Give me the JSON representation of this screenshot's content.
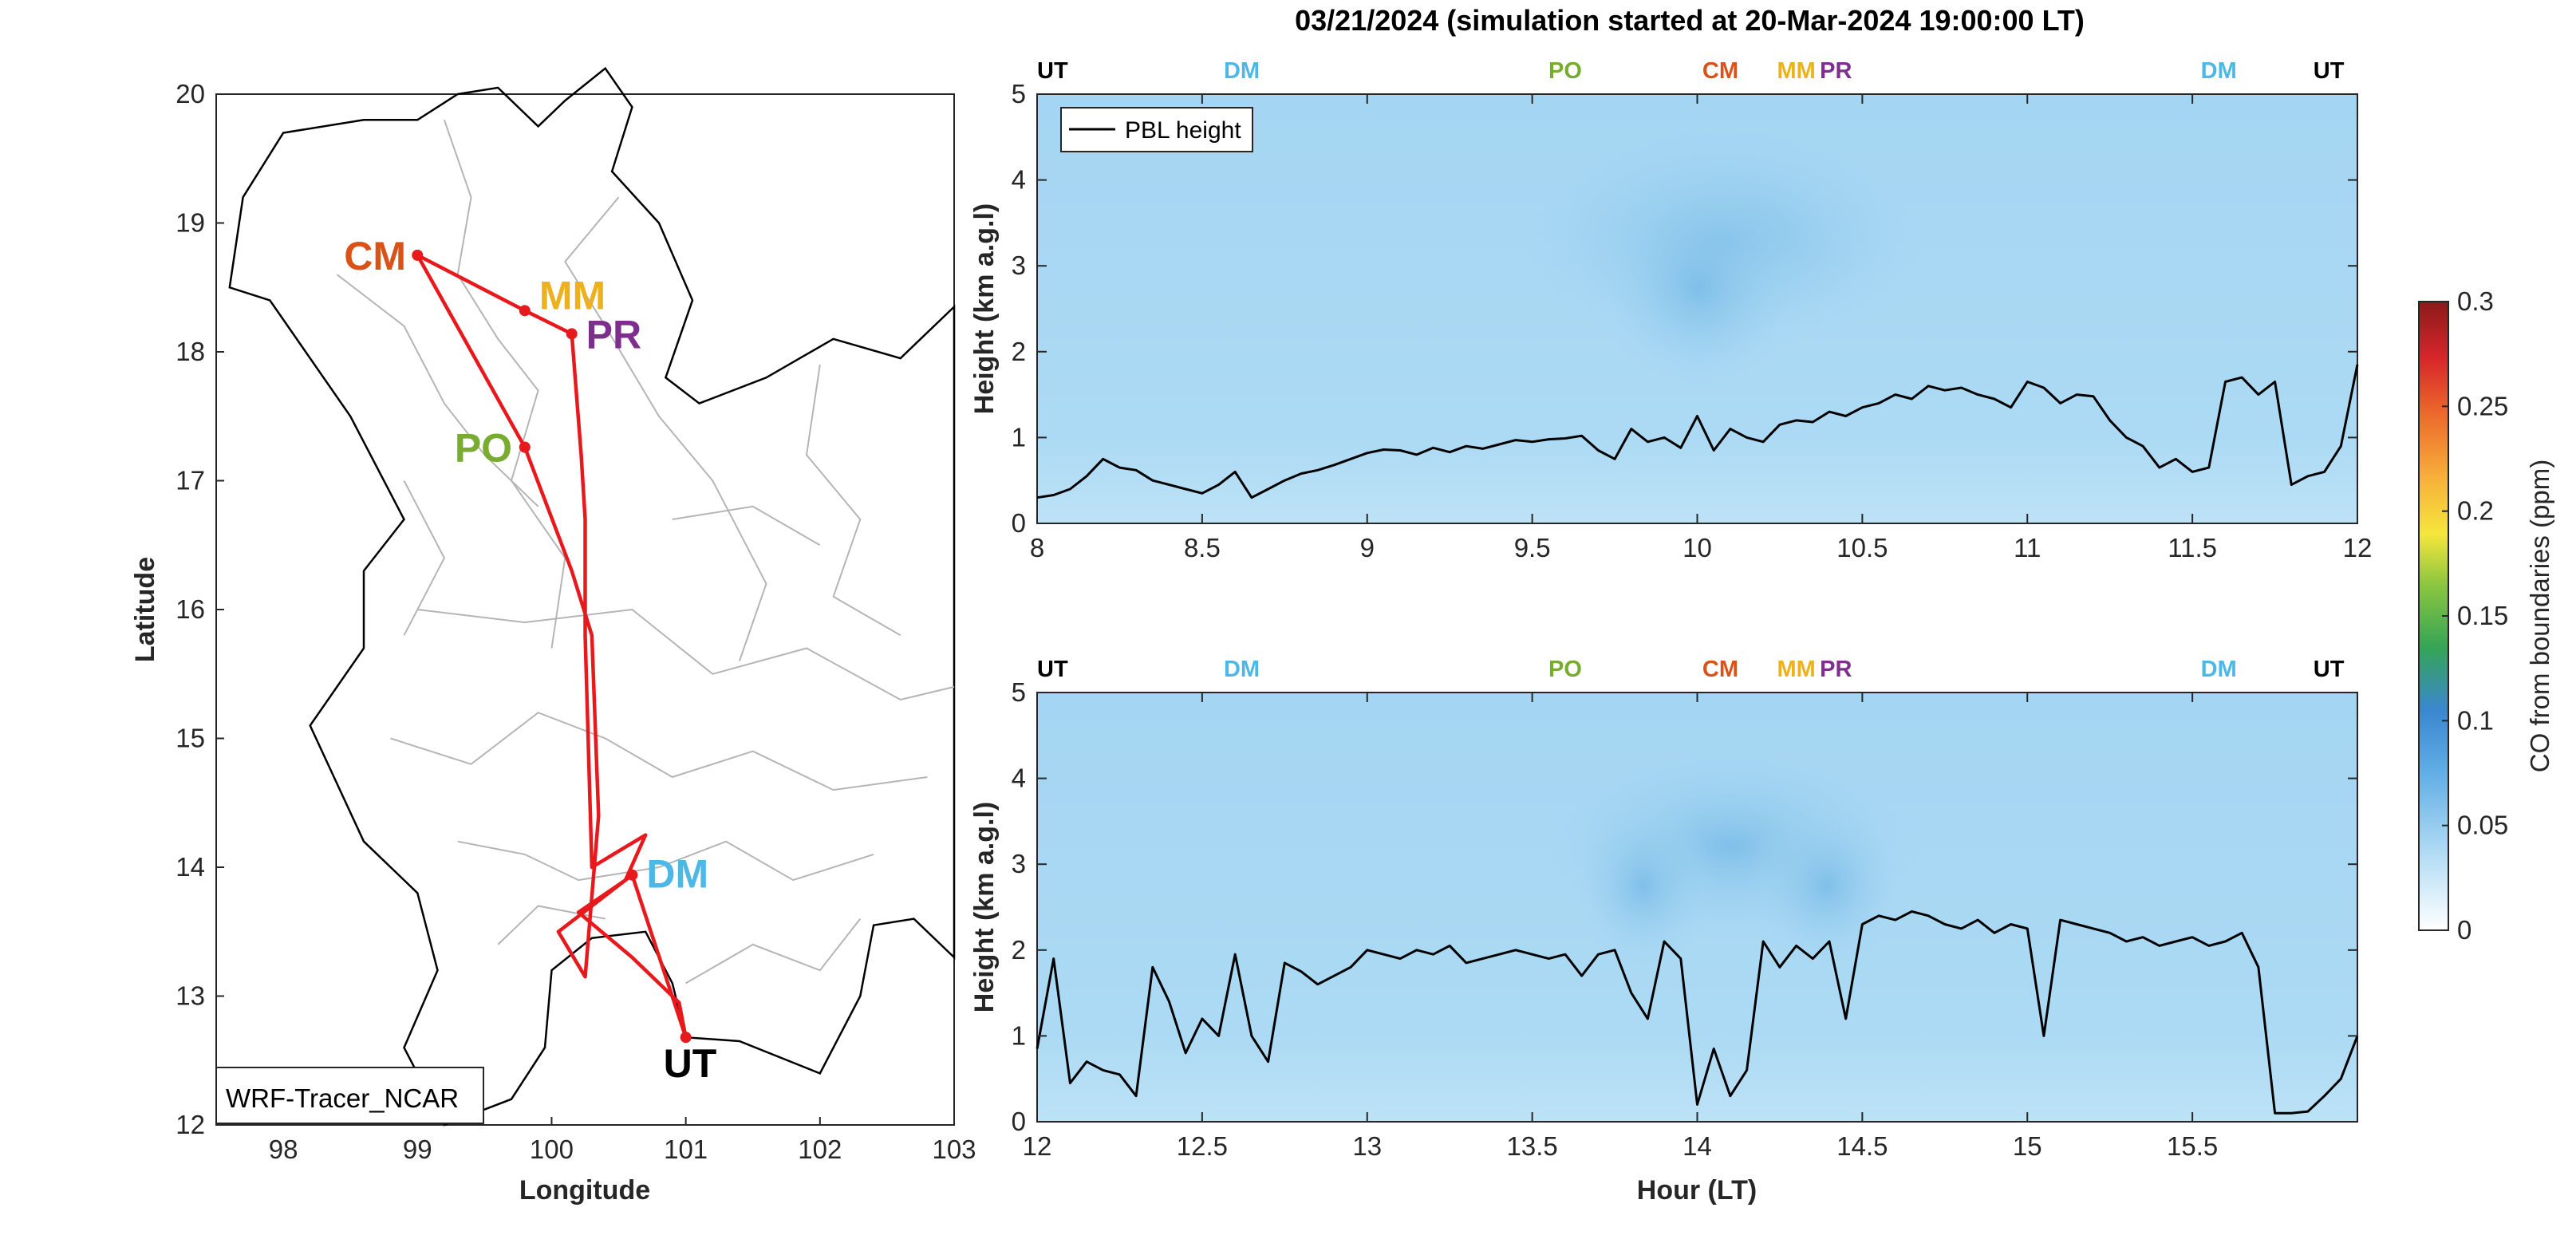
{
  "figure_title": "03/21/2024 (simulation started at 20-Mar-2024 19:00:00 LT)",
  "colors": {
    "route": "#e8191c",
    "ut": "#000000",
    "dm": "#4db8e8",
    "po": "#77ac30",
    "cm": "#d95319",
    "mm": "#edb120",
    "pr": "#7e2f8e",
    "pbl_line": "#000000",
    "field_bg": "#a8d8f3",
    "field_dark": "#86c3ea",
    "field_light": "#cdeaf9"
  },
  "map": {
    "xlabel": "Longitude",
    "ylabel": "Latitude",
    "xlim": [
      97.5,
      103
    ],
    "ylim": [
      12,
      20
    ],
    "xticks": [
      "98",
      "99",
      "100",
      "101",
      "102",
      "103"
    ],
    "yticks": [
      "12",
      "13",
      "14",
      "15",
      "16",
      "17",
      "18",
      "19",
      "20"
    ],
    "model_label": "WRF-Tracer_NCAR",
    "sites": [
      {
        "name": "CM",
        "lon": 99.0,
        "lat": 18.75,
        "color_key": "cm"
      },
      {
        "name": "MM",
        "lon": 99.8,
        "lat": 18.32,
        "color_key": "mm"
      },
      {
        "name": "PR",
        "lon": 100.15,
        "lat": 18.14,
        "color_key": "pr"
      },
      {
        "name": "PO",
        "lon": 99.8,
        "lat": 17.26,
        "color_key": "po"
      },
      {
        "name": "DM",
        "lon": 100.6,
        "lat": 13.94,
        "color_key": "dm"
      },
      {
        "name": "UT",
        "lon": 101.0,
        "lat": 12.68,
        "color_key": "ut"
      }
    ],
    "route": [
      [
        101.0,
        12.68
      ],
      [
        100.6,
        13.94
      ],
      [
        100.05,
        13.5
      ],
      [
        100.25,
        13.15
      ],
      [
        100.35,
        14.4
      ],
      [
        100.3,
        15.8
      ],
      [
        100.15,
        16.3
      ],
      [
        99.8,
        17.26
      ],
      [
        99.0,
        18.75
      ],
      [
        99.8,
        18.32
      ],
      [
        100.15,
        18.14
      ],
      [
        100.22,
        17.2
      ],
      [
        100.25,
        16.7
      ],
      [
        100.25,
        15.8
      ],
      [
        100.3,
        14.0
      ],
      [
        100.7,
        14.25
      ],
      [
        100.55,
        13.9
      ],
      [
        100.2,
        13.65
      ],
      [
        100.6,
        13.3
      ],
      [
        100.95,
        12.95
      ],
      [
        101.0,
        12.68
      ]
    ]
  },
  "panels": [
    {
      "ylabel": "Height (km a.g.l)",
      "xlabel": "",
      "xlim": [
        8,
        12
      ],
      "ylim": [
        0,
        5
      ],
      "xticks": [
        "8",
        "8.5",
        "9",
        "9.5",
        "10",
        "10.5",
        "11",
        "11.5",
        "12"
      ],
      "yticks": [
        "0",
        "1",
        "2",
        "3",
        "4",
        "5"
      ],
      "legend": "PBL height",
      "top_labels": [
        {
          "text": "UT",
          "x": 8.0,
          "color_key": "ut"
        },
        {
          "text": "DM",
          "x": 8.62,
          "color_key": "dm"
        },
        {
          "text": "PO",
          "x": 9.6,
          "color_key": "po"
        },
        {
          "text": "CM",
          "x": 10.07,
          "color_key": "cm"
        },
        {
          "text": "MM",
          "x": 10.3,
          "color_key": "mm"
        },
        {
          "text": "PR",
          "x": 10.42,
          "color_key": "pr"
        },
        {
          "text": "DM",
          "x": 11.58,
          "color_key": "dm"
        },
        {
          "text": "UT",
          "x": 11.96,
          "color_key": "ut"
        }
      ]
    },
    {
      "ylabel": "Height (km a.g.l)",
      "xlabel": "Hour (LT)",
      "xlim": [
        12,
        16
      ],
      "ylim": [
        0,
        5
      ],
      "xticks": [
        "12",
        "12.5",
        "13",
        "13.5",
        "14",
        "14.5",
        "15",
        "15.5"
      ],
      "yticks": [
        "0",
        "1",
        "2",
        "3",
        "4",
        "5"
      ],
      "legend": "",
      "top_labels": [
        {
          "text": "UT",
          "x": 12.0,
          "color_key": "ut"
        },
        {
          "text": "DM",
          "x": 12.62,
          "color_key": "dm"
        },
        {
          "text": "PO",
          "x": 13.6,
          "color_key": "po"
        },
        {
          "text": "CM",
          "x": 14.07,
          "color_key": "cm"
        },
        {
          "text": "MM",
          "x": 14.3,
          "color_key": "mm"
        },
        {
          "text": "PR",
          "x": 14.42,
          "color_key": "pr"
        },
        {
          "text": "DM",
          "x": 15.58,
          "color_key": "dm"
        },
        {
          "text": "UT",
          "x": 15.96,
          "color_key": "ut"
        }
      ]
    }
  ],
  "colorbar": {
    "label": "CO from boundaries (ppm)",
    "range": [
      0,
      0.3
    ],
    "ticks": [
      "0",
      "0.05",
      "0.1",
      "0.15",
      "0.2",
      "0.25",
      "0.3"
    ]
  },
  "chart_data": [
    {
      "type": "line",
      "title": "03/21/2024 (simulation started at 20-Mar-2024 19:00:00 LT)",
      "xlabel": "",
      "ylabel": "Height (km a.g.l)",
      "xlim": [
        8,
        12
      ],
      "ylim": [
        0,
        5
      ],
      "series": [
        {
          "name": "PBL height",
          "x": [
            8.0,
            8.05,
            8.1,
            8.15,
            8.2,
            8.25,
            8.3,
            8.35,
            8.4,
            8.45,
            8.5,
            8.55,
            8.6,
            8.65,
            8.7,
            8.75,
            8.8,
            8.85,
            8.9,
            8.95,
            9.0,
            9.05,
            9.1,
            9.15,
            9.2,
            9.25,
            9.3,
            9.35,
            9.4,
            9.45,
            9.5,
            9.55,
            9.6,
            9.65,
            9.7,
            9.75,
            9.8,
            9.85,
            9.9,
            9.95,
            10.0,
            10.05,
            10.1,
            10.15,
            10.2,
            10.25,
            10.3,
            10.35,
            10.4,
            10.45,
            10.5,
            10.55,
            10.6,
            10.65,
            10.7,
            10.75,
            10.8,
            10.85,
            10.9,
            10.95,
            11.0,
            11.05,
            11.1,
            11.15,
            11.2,
            11.25,
            11.3,
            11.35,
            11.4,
            11.45,
            11.5,
            11.55,
            11.6,
            11.65,
            11.7,
            11.75,
            11.8,
            11.85,
            11.9,
            11.95,
            12.0
          ],
          "y": [
            0.3,
            0.33,
            0.4,
            0.55,
            0.75,
            0.65,
            0.62,
            0.5,
            0.45,
            0.4,
            0.35,
            0.45,
            0.6,
            0.3,
            0.4,
            0.5,
            0.58,
            0.62,
            0.68,
            0.75,
            0.82,
            0.86,
            0.85,
            0.8,
            0.88,
            0.83,
            0.9,
            0.87,
            0.92,
            0.97,
            0.95,
            0.98,
            0.99,
            1.02,
            0.85,
            0.75,
            1.1,
            0.95,
            1.0,
            0.88,
            1.25,
            0.85,
            1.1,
            1.0,
            0.95,
            1.15,
            1.2,
            1.18,
            1.3,
            1.25,
            1.35,
            1.4,
            1.5,
            1.45,
            1.6,
            1.55,
            1.58,
            1.5,
            1.45,
            1.35,
            1.65,
            1.58,
            1.4,
            1.5,
            1.48,
            1.2,
            1.0,
            0.9,
            0.65,
            0.75,
            0.6,
            0.65,
            1.65,
            1.7,
            1.5,
            1.65,
            0.45,
            0.55,
            0.6,
            0.9,
            1.85
          ]
        }
      ]
    },
    {
      "type": "line",
      "title": "",
      "xlabel": "Hour (LT)",
      "ylabel": "Height (km a.g.l)",
      "xlim": [
        12,
        16
      ],
      "ylim": [
        0,
        5
      ],
      "series": [
        {
          "name": "PBL height",
          "x": [
            12.0,
            12.05,
            12.1,
            12.15,
            12.2,
            12.25,
            12.3,
            12.35,
            12.4,
            12.45,
            12.5,
            12.55,
            12.6,
            12.65,
            12.7,
            12.75,
            12.8,
            12.85,
            12.9,
            12.95,
            13.0,
            13.05,
            13.1,
            13.15,
            13.2,
            13.25,
            13.3,
            13.35,
            13.4,
            13.45,
            13.5,
            13.55,
            13.6,
            13.65,
            13.7,
            13.75,
            13.8,
            13.85,
            13.9,
            13.95,
            14.0,
            14.05,
            14.1,
            14.15,
            14.2,
            14.25,
            14.3,
            14.35,
            14.4,
            14.45,
            14.5,
            14.55,
            14.6,
            14.65,
            14.7,
            14.75,
            14.8,
            14.85,
            14.9,
            14.95,
            15.0,
            15.05,
            15.1,
            15.15,
            15.2,
            15.25,
            15.3,
            15.35,
            15.4,
            15.45,
            15.5,
            15.55,
            15.6,
            15.65,
            15.7,
            15.75,
            15.8,
            15.85,
            15.9,
            15.95,
            16.0
          ],
          "y": [
            0.85,
            1.9,
            0.45,
            0.7,
            0.6,
            0.55,
            0.3,
            1.8,
            1.4,
            0.8,
            1.2,
            1.0,
            1.95,
            1.0,
            0.7,
            1.85,
            1.75,
            1.6,
            1.7,
            1.8,
            2.0,
            1.95,
            1.9,
            2.0,
            1.95,
            2.05,
            1.85,
            1.9,
            1.95,
            2.0,
            1.95,
            1.9,
            1.95,
            1.7,
            1.95,
            2.0,
            1.5,
            1.2,
            2.1,
            1.9,
            0.2,
            0.85,
            0.3,
            0.6,
            2.1,
            1.8,
            2.05,
            1.9,
            2.1,
            1.2,
            2.3,
            2.4,
            2.35,
            2.45,
            2.4,
            2.3,
            2.25,
            2.35,
            2.2,
            2.3,
            2.25,
            1.0,
            2.35,
            2.3,
            2.25,
            2.2,
            2.1,
            2.15,
            2.05,
            2.1,
            2.15,
            2.05,
            2.1,
            2.2,
            1.8,
            0.1,
            0.1,
            0.12,
            0.3,
            0.5,
            1.0
          ]
        }
      ]
    }
  ]
}
